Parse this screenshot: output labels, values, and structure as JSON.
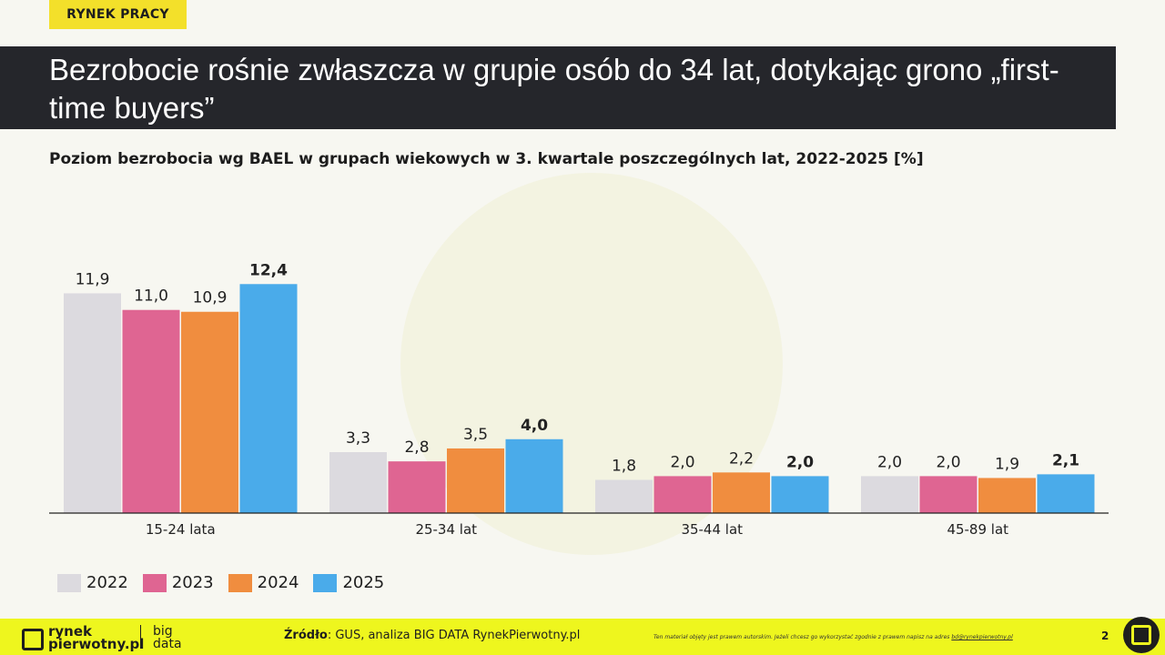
{
  "header": {
    "tag": "RYNEK PRACY",
    "title": "Bezrobocie rośnie zwłaszcza w grupie osób do 34 lat, dotykając grono „first-time buyers”"
  },
  "colors": {
    "accent": "#eef61e",
    "dark": "#25262b"
  },
  "chart_data": {
    "type": "bar",
    "title": "Poziom bezrobocia wg BAEL w grupach wiekowych w 3. kwartale poszczególnych lat, 2022-2025 [%]",
    "xlabel": "",
    "ylabel": "",
    "ylim": [
      0,
      13.5
    ],
    "grid": false,
    "legend_position": "bottom-left",
    "categories": [
      "15-24 lata",
      "25-34 lat",
      "35-44 lat",
      "45-89 lat"
    ],
    "series": [
      {
        "name": "2022",
        "color": "#dcdadf",
        "values": [
          11.9,
          3.3,
          1.8,
          2.0
        ],
        "labels": [
          "11,9",
          "3,3",
          "1,8",
          "2,0"
        ]
      },
      {
        "name": "2023",
        "color": "#df6592",
        "values": [
          11.0,
          2.8,
          2.0,
          2.0
        ],
        "labels": [
          "11,0",
          "2,8",
          "2,0",
          "2,0"
        ]
      },
      {
        "name": "2024",
        "color": "#f08d3f",
        "values": [
          10.9,
          3.5,
          2.2,
          1.9
        ],
        "labels": [
          "10,9",
          "3,5",
          "2,2",
          "1,9"
        ]
      },
      {
        "name": "2025",
        "color": "#4aabea",
        "values": [
          12.4,
          4.0,
          2.0,
          2.1
        ],
        "labels": [
          "12,4",
          "4,0",
          "2,0",
          "2,1"
        ],
        "bold_labels": true
      }
    ]
  },
  "footer": {
    "logo_line1": "rynek",
    "logo_line2": "pierwotny.pl",
    "logo2_line1": "big",
    "logo2_line2": "data",
    "source_label": "Źródło",
    "source_text": ": GUS, analiza BIG DATA RynekPierwotny.pl",
    "disclaimer": "Ten materiał objęty jest prawem autorskim. Jeżeli chcesz go wykorzystać zgodnie z prawem napisz na adres ",
    "disclaimer_email": "bd@rynekpierwotny.pl",
    "page_number": "2"
  }
}
